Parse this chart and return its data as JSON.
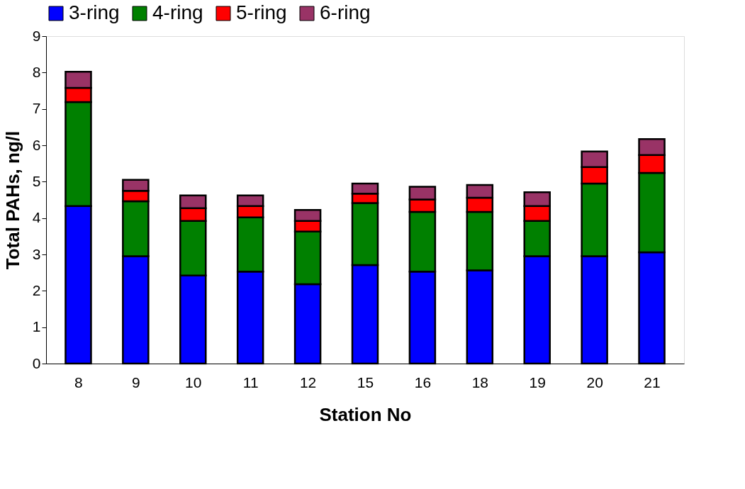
{
  "chart_data": {
    "type": "bar",
    "stacked": true,
    "xlabel": "Station No",
    "ylabel": "Total PAHs, ng/l",
    "categories": [
      "8",
      "9",
      "10",
      "11",
      "12",
      "15",
      "16",
      "18",
      "19",
      "20",
      "21"
    ],
    "series": [
      {
        "name": "3-ring",
        "color": "#0000ff",
        "values": [
          4.33,
          2.95,
          2.42,
          2.53,
          2.18,
          2.71,
          2.53,
          2.56,
          2.95,
          2.95,
          3.06
        ]
      },
      {
        "name": "4-ring",
        "color": "#008000",
        "values": [
          2.86,
          1.51,
          1.5,
          1.49,
          1.45,
          1.7,
          1.64,
          1.61,
          0.97,
          2.0,
          2.18
        ]
      },
      {
        "name": "5-ring",
        "color": "#ff0000",
        "values": [
          0.39,
          0.29,
          0.35,
          0.31,
          0.29,
          0.26,
          0.34,
          0.39,
          0.41,
          0.45,
          0.49
        ]
      },
      {
        "name": "6-ring",
        "color": "#993366",
        "values": [
          0.44,
          0.3,
          0.35,
          0.29,
          0.3,
          0.28,
          0.35,
          0.35,
          0.38,
          0.43,
          0.44
        ]
      }
    ],
    "ylim": [
      0,
      9
    ],
    "yticks": [
      0,
      1,
      2,
      3,
      4,
      5,
      6,
      7,
      8,
      9
    ],
    "grid": false,
    "legend": "top"
  }
}
